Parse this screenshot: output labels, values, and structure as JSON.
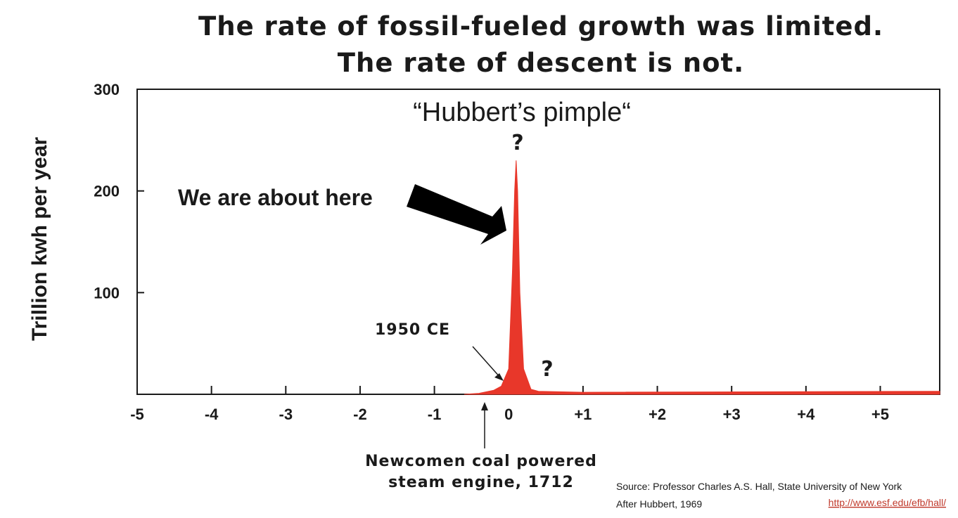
{
  "headline": {
    "line1": "The rate of fossil-fueled growth was limited.",
    "line2": "The rate of descent is not."
  },
  "chart_data": {
    "type": "area",
    "title": "“Hubbert’s pimple“",
    "xlabel": "",
    "ylabel": "Trillion kwh per year",
    "xlim": [
      -5,
      5.8
    ],
    "ylim": [
      0,
      300
    ],
    "ytick_labels": [
      "100",
      "200",
      "300"
    ],
    "ytick_values": [
      100,
      200,
      300
    ],
    "xtick_values": [
      -5,
      -4,
      -3,
      -2,
      -1,
      0,
      1,
      2,
      3,
      4,
      5
    ],
    "xtick_labels": [
      "-5",
      "-4",
      "-3",
      "-2",
      "-1",
      "0",
      "+1",
      "+2",
      "+3",
      "+4",
      "+5"
    ],
    "series": [
      {
        "x": [
          -0.6,
          -0.4,
          -0.2,
          -0.1,
          0.0,
          0.05,
          0.08,
          0.1,
          0.12,
          0.15,
          0.2,
          0.3,
          0.4,
          1.0,
          5.8
        ],
        "y": [
          0,
          1,
          4,
          8,
          25,
          120,
          200,
          230,
          200,
          100,
          25,
          5,
          3,
          2,
          3
        ]
      }
    ],
    "grid": false,
    "annotations": {
      "we_are_here": "We are about here",
      "question_peak": "?",
      "question_tail": "?",
      "ce_1950": "1950 CE",
      "newcomen_line1": "Newcomen coal powered",
      "newcomen_line2": "steam engine, 1712"
    }
  },
  "source": {
    "line1": "Source: Professor Charles A.S. Hall, State University of New York",
    "line2": "After Hubbert, 1969",
    "url": "http://www.esf.edu/efb/hall/"
  },
  "colors": {
    "fill": "#e8372a",
    "axis": "#1a1a1a"
  }
}
